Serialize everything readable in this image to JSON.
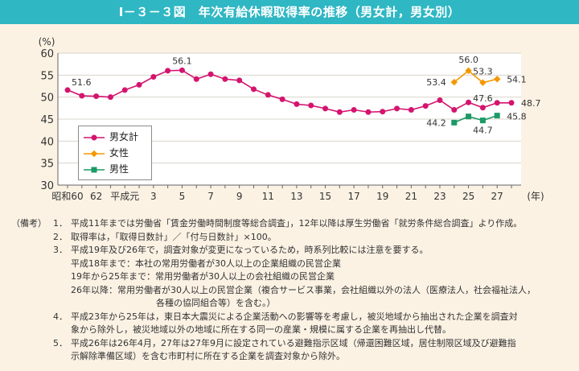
{
  "header": {
    "title": "Ⅰ－３－３図　年次有給休暇取得率の推移（男女計，男女別）"
  },
  "chart_data": {
    "type": "line",
    "ylabel": "(%)",
    "xunit": "(年)",
    "ylim": [
      30,
      60
    ],
    "yticks": [
      30,
      35,
      40,
      45,
      50,
      55,
      60
    ],
    "years": [
      1984,
      1985,
      1986,
      1987,
      1988,
      1989,
      1990,
      1991,
      1992,
      1993,
      1994,
      1995,
      1996,
      1997,
      1998,
      1999,
      2000,
      2001,
      2002,
      2003,
      2004,
      2005,
      2006,
      2007,
      2008,
      2009,
      2010,
      2011,
      2012,
      2013,
      2014,
      2015
    ],
    "xticks": [
      {
        "year": 1984,
        "label": "昭和60"
      },
      {
        "year": 1986,
        "label": "62"
      },
      {
        "year": 1988,
        "label": "平成元"
      },
      {
        "year": 1990,
        "label": "3"
      },
      {
        "year": 1992,
        "label": "5"
      },
      {
        "year": 1994,
        "label": "7"
      },
      {
        "year": 1996,
        "label": "9"
      },
      {
        "year": 1998,
        "label": "11"
      },
      {
        "year": 2000,
        "label": "13"
      },
      {
        "year": 2002,
        "label": "15"
      },
      {
        "year": 2004,
        "label": "17"
      },
      {
        "year": 2006,
        "label": "19"
      },
      {
        "year": 2008,
        "label": "21"
      },
      {
        "year": 2010,
        "label": "23"
      },
      {
        "year": 2012,
        "label": "25"
      },
      {
        "year": 2014,
        "label": "27"
      }
    ],
    "series": [
      {
        "name": "男女計",
        "color": "#d4146e",
        "marker": "circle",
        "start_year": 1984,
        "values": [
          51.6,
          50.3,
          50.2,
          50.0,
          51.6,
          52.8,
          54.6,
          56.0,
          56.1,
          54.1,
          55.2,
          54.1,
          53.8,
          51.8,
          50.5,
          49.5,
          48.4,
          48.1,
          47.4,
          46.6,
          47.1,
          46.6,
          46.7,
          47.4,
          47.1,
          48.0,
          49.3,
          47.1,
          48.8,
          47.6,
          48.7,
          48.7
        ]
      },
      {
        "name": "女性",
        "color": "#f39800",
        "marker": "diamond",
        "start_year": 2011,
        "values": [
          53.4,
          56.0,
          53.3,
          54.1
        ]
      },
      {
        "name": "男性",
        "color": "#1b9a66",
        "marker": "square",
        "start_year": 2011,
        "values": [
          44.2,
          45.6,
          44.7,
          45.8
        ]
      }
    ],
    "data_labels": [
      {
        "text": "51.6",
        "series": 0,
        "index": 0
      },
      {
        "text": "56.1",
        "series": 0,
        "index": 8
      },
      {
        "text": "53.4",
        "series": 1,
        "index": 0
      },
      {
        "text": "56.0",
        "series": 1,
        "index": 1
      },
      {
        "text": "53.3",
        "series": 1,
        "index": 2
      },
      {
        "text": "54.1",
        "series": 1,
        "index": 3
      },
      {
        "text": "47.6",
        "series": 0,
        "index": 29
      },
      {
        "text": "48.7",
        "series": 0,
        "index": 31
      },
      {
        "text": "44.2",
        "series": 2,
        "index": 0
      },
      {
        "text": "44.7",
        "series": 2,
        "index": 2
      },
      {
        "text": "45.8",
        "series": 2,
        "index": 3
      }
    ]
  },
  "legend": {
    "items": [
      {
        "label": "男女計",
        "color": "#d4146e"
      },
      {
        "label": "女性",
        "color": "#f39800"
      },
      {
        "label": "男性",
        "color": "#1b9a66"
      }
    ]
  },
  "notes": {
    "head": "（備考）",
    "n1_num": "1．",
    "n1": "平成11年までは労働省「賃金労働時間制度等総合調査」，12年以降は厚生労働省「就労条件総合調査」より作成。",
    "n2_num": "2．",
    "n2": "取得率は，「取得日数計」／「付与日数計」×100。",
    "n3_num": "3．",
    "n3": "平成19年及び26年で，調査対象が変更になっているため，時系列比較には注意を要する。",
    "n3_a": "平成18年まで：本社の常用労働者が30人以上の企業組織の民営企業",
    "n3_b": "19年から25年まで：常用労働者が30人以上の会社組織の民営企業",
    "n3_c1": "26年以降：常用労働者が30人以上の民営企業（複合サービス事業，会社組織以外の法人（医療法人，社会福祉法人，",
    "n3_c2": "各種の協同組合等）を含む。）",
    "n4_num": "4．",
    "n4_1": "平成23年から25年は，東日本大震災による企業活動への影響等を考慮し，被災地域から抽出された企業を調査対",
    "n4_2": "象から除外し，被災地域以外の地域に所在する同一の産業・規模に属する企業を再抽出し代替。",
    "n5_num": "5．",
    "n5_1": "平成26年は26年4月，27年は27年9月に設定されている避難指示区域（帰還困難区域，居住制限区域及び避難指",
    "n5_2": "示解除準備区域）を含む市町村に所在する企業を調査対象から除外。"
  }
}
